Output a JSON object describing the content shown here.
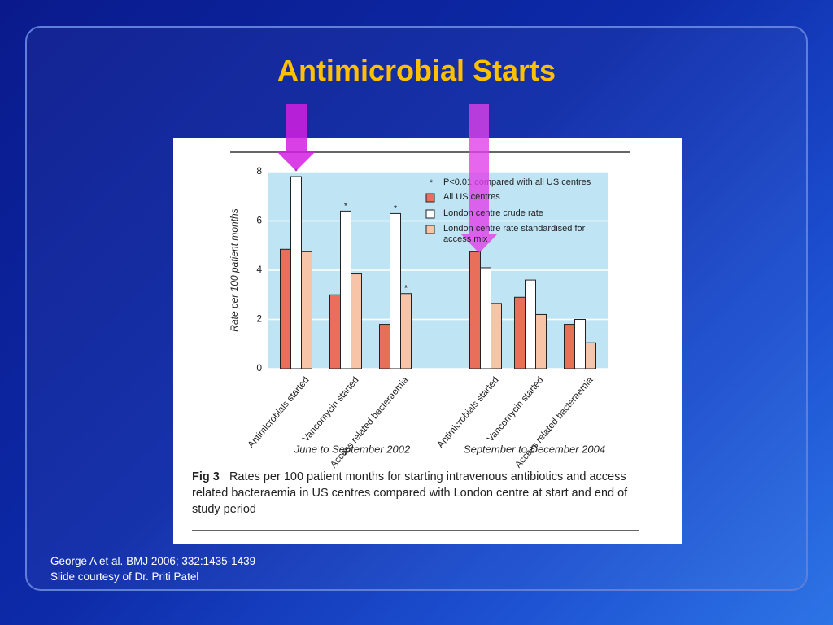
{
  "slide": {
    "title": "Antimicrobial Starts",
    "citation": [
      "George A et al. BMJ 2006; 332:1435-1439",
      "Slide courtesy of Dr. Priti Patel"
    ]
  },
  "chart_data": {
    "type": "bar",
    "ylabel": "Rate per 100 patient months",
    "categories": [
      "Antimicrobials started",
      "Vancomycin started",
      "Access related bacteraemia",
      "Antimicrobials started",
      "Vancomycin started",
      "Access related bacteraemia"
    ],
    "groups": [
      "June to September 2002",
      "September to December 2004"
    ],
    "series": [
      {
        "name": "All US centres",
        "color": "#e8705a",
        "values": [
          4.85,
          3.0,
          1.8,
          4.75,
          2.9,
          1.8
        ],
        "starred": [
          false,
          false,
          false,
          false,
          false,
          false
        ]
      },
      {
        "name": "London centre crude rate",
        "color": "#ffffff",
        "values": [
          7.8,
          6.4,
          6.3,
          4.1,
          3.6,
          2.0
        ],
        "starred": [
          true,
          true,
          true,
          false,
          false,
          false
        ]
      },
      {
        "name": "London centre rate standardised for access mix",
        "color": "#f8c4a8",
        "values": [
          4.75,
          3.85,
          3.05,
          2.65,
          2.2,
          1.05
        ],
        "starred": [
          false,
          false,
          true,
          false,
          false,
          false
        ]
      }
    ],
    "significance_symbol": "*",
    "significance_note": "P<0.01 compared with all US centres",
    "ylim": [
      0,
      8
    ],
    "yticks": [
      0,
      2,
      4,
      6,
      8
    ],
    "grid": true,
    "caption_label": "Fig 3",
    "caption": "Rates per 100 patient months for starting intravenous antibiotics and access related bacteraemia in US centres compared with London centre at start and end of study period"
  }
}
